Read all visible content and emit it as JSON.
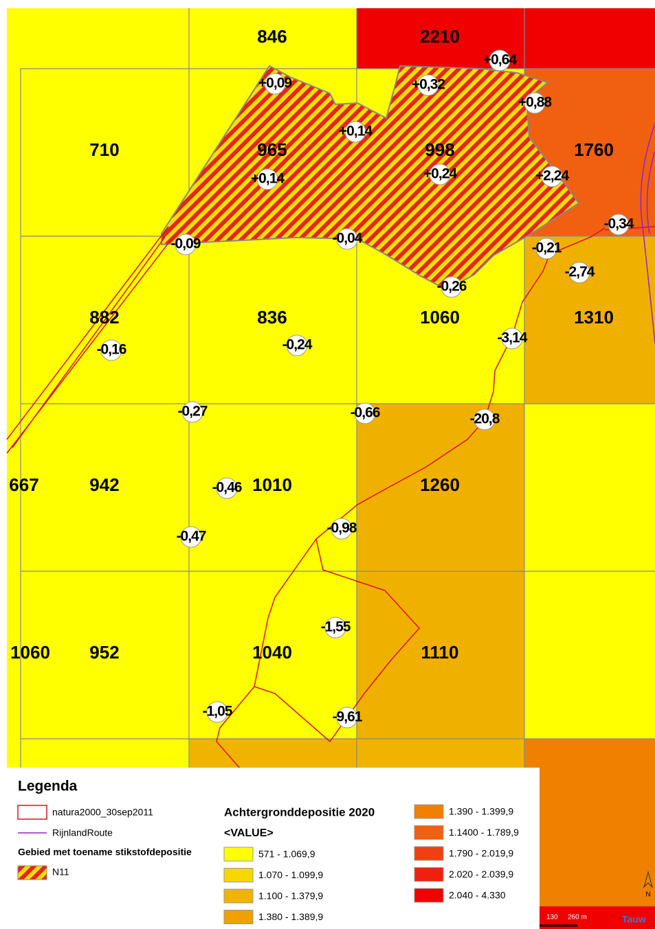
{
  "map": {
    "cells": [
      {
        "value": 846,
        "color": "#ffff00"
      },
      {
        "value": 2210,
        "color": "#f00000"
      },
      {
        "value": 710,
        "color": "#ffff00"
      },
      {
        "value": 965,
        "color": "#ffff00"
      },
      {
        "value": 998,
        "color": "#ffff00"
      },
      {
        "value": 1760,
        "color": "#f06010"
      },
      {
        "value": 882,
        "color": "#ffff00"
      },
      {
        "value": 836,
        "color": "#ffff00"
      },
      {
        "value": 1060,
        "color": "#ffff00"
      },
      {
        "value": 1310,
        "color": "#f0b000"
      },
      {
        "value": 667,
        "color": "#ffff00"
      },
      {
        "value": 942,
        "color": "#ffff00"
      },
      {
        "value": 1010,
        "color": "#ffff00"
      },
      {
        "value": 1260,
        "color": "#f0b000"
      },
      {
        "value": 1060,
        "color": "#ffff00"
      },
      {
        "value": 952,
        "color": "#ffff00"
      },
      {
        "value": 1040,
        "color": "#ffff00"
      },
      {
        "value": 1110,
        "color": "#f0b000"
      }
    ],
    "changes": [
      "+0,64",
      "+0,09",
      "+0,32",
      "+0,88",
      "+0,14",
      "+0,14",
      "+0,24",
      "+2,24",
      "-0,34",
      "-0,09",
      "-0,04",
      "-0,21",
      "-2,74",
      "-0,26",
      "-3,14",
      "-0,16",
      "-0,24",
      "-0,27",
      "-0,66",
      "-20,8",
      "-0,46",
      "-0,47",
      "-0,98",
      "-1,55",
      "-1,05",
      "-9,61"
    ],
    "scale": {
      "labels": [
        "130",
        "260 m"
      ],
      "north": "N",
      "brand": "Tauw"
    }
  },
  "legend": {
    "title": "Legenda",
    "natura": "natura2000_30sep2011",
    "route": "RijnlandRoute",
    "increase_heading": "Gebied met toename stikstofdepositie",
    "increase_item": "N11",
    "deposition_title": "Achtergronddepositie 2020",
    "deposition_subtitle": "<VALUE>",
    "classes": [
      {
        "label": "571 - 1.069,9",
        "color": "#ffff00"
      },
      {
        "label": "1.070 - 1.099,9",
        "color": "#f5d800"
      },
      {
        "label": "1.100 - 1.379,9",
        "color": "#f0b400"
      },
      {
        "label": "1.380 - 1.389,9",
        "color": "#f0a000"
      },
      {
        "label": "1.390 - 1.399,9",
        "color": "#f08000"
      },
      {
        "label": "1.1400 - 1.789,9",
        "color": "#f06010"
      },
      {
        "label": "1.790 - 2.019,9",
        "color": "#f04010"
      },
      {
        "label": "2.020 - 2.039,9",
        "color": "#f02010"
      },
      {
        "label": "2.040 - 4.330",
        "color": "#f00000"
      }
    ]
  }
}
